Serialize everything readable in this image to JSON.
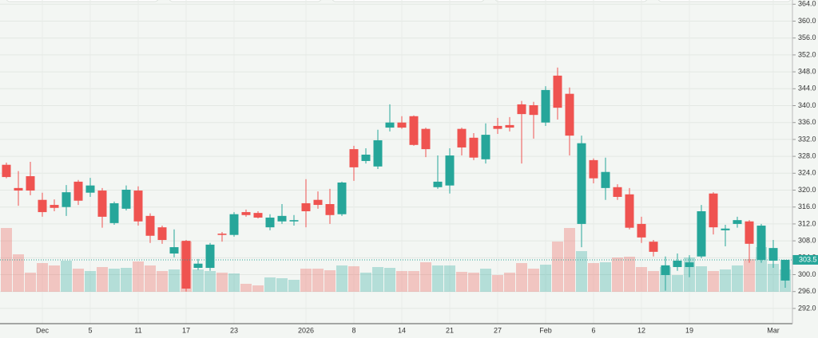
{
  "chart_data": {
    "type": "candlestick",
    "categories": [
      null,
      null,
      null,
      "Dec",
      null,
      null,
      null,
      "5",
      null,
      null,
      null,
      "11",
      null,
      null,
      null,
      "17",
      null,
      null,
      null,
      "23",
      null,
      null,
      null,
      null,
      null,
      "2026",
      null,
      null,
      null,
      "8",
      null,
      null,
      null,
      "14",
      null,
      null,
      null,
      "21",
      null,
      null,
      null,
      "27",
      null,
      null,
      null,
      "Feb",
      null,
      null,
      null,
      "6",
      null,
      null,
      null,
      "12",
      null,
      null,
      null,
      "19",
      null,
      null,
      null,
      null,
      null,
      null,
      "Mar",
      null
    ],
    "open": [
      326.0,
      320.5,
      323.3,
      317.7,
      316.5,
      316.0,
      322.0,
      319.4,
      319.9,
      312.2,
      315.6,
      319.9,
      313.9,
      311.2,
      305.0,
      308.0,
      301.6,
      301.6,
      309.7,
      309.4,
      314.8,
      314.6,
      311.2,
      312.6,
      312.6,
      316.9,
      317.7,
      316.7,
      314.3,
      329.7,
      326.9,
      325.6,
      334.8,
      336.0,
      337.5,
      334.5,
      320.7,
      321.1,
      334.5,
      332.4,
      327.3,
      335.2,
      335.4,
      340.3,
      340.1,
      336.0,
      347.1,
      342.8,
      312.0,
      327.1,
      320.5,
      320.7,
      319.0,
      312.0,
      307.8,
      299.9,
      301.8,
      301.8,
      304.3,
      319.2,
      310.5,
      312.0,
      312.6,
      303.5,
      303.3,
      298.6
    ],
    "high": [
      326.5,
      324.5,
      326.7,
      319.4,
      317.8,
      321.2,
      322.4,
      322.9,
      320.5,
      317.3,
      321.1,
      320.9,
      314.5,
      311.6,
      310.7,
      308.2,
      303.7,
      307.5,
      310.1,
      314.8,
      315.4,
      315.0,
      314.3,
      316.7,
      314.1,
      322.6,
      319.7,
      320.3,
      322.0,
      330.5,
      329.9,
      334.3,
      340.3,
      337.5,
      337.7,
      334.8,
      328.2,
      329.9,
      334.8,
      333.5,
      335.8,
      337.1,
      337.3,
      341.1,
      340.9,
      344.6,
      349.0,
      344.3,
      332.9,
      327.5,
      327.7,
      321.4,
      320.5,
      313.7,
      308.2,
      304.3,
      305.0,
      304.6,
      316.5,
      319.5,
      311.8,
      313.7,
      312.9,
      312.0,
      308.2,
      303.5
    ],
    "low": [
      322.8,
      316.3,
      318.8,
      313.7,
      315.0,
      313.9,
      316.5,
      318.4,
      311.1,
      311.8,
      315.2,
      311.6,
      307.5,
      307.3,
      304.1,
      296.0,
      301.1,
      300.9,
      307.8,
      309.0,
      313.7,
      313.3,
      310.5,
      312.0,
      311.6,
      311.2,
      315.6,
      312.0,
      313.9,
      322.2,
      326.3,
      325.0,
      333.9,
      334.5,
      330.5,
      327.8,
      320.3,
      319.2,
      328.2,
      327.1,
      326.3,
      333.3,
      333.9,
      326.3,
      332.2,
      335.2,
      336.7,
      328.2,
      306.5,
      321.6,
      317.7,
      317.7,
      310.7,
      307.5,
      304.3,
      296.2,
      300.9,
      299.4,
      303.9,
      309.5,
      306.7,
      311.1,
      302.8,
      302.8,
      301.6,
      296.9
    ],
    "close": [
      323.1,
      319.9,
      319.9,
      314.8,
      315.8,
      319.5,
      317.5,
      321.1,
      313.7,
      316.9,
      320.1,
      312.6,
      309.2,
      308.2,
      306.5,
      296.7,
      302.6,
      307.1,
      309.4,
      314.3,
      314.1,
      313.5,
      313.5,
      313.9,
      312.9,
      315.0,
      316.5,
      314.1,
      321.8,
      325.4,
      328.4,
      331.8,
      336.0,
      334.8,
      330.7,
      329.7,
      322.0,
      328.2,
      330.1,
      327.7,
      333.1,
      334.5,
      334.8,
      338.0,
      337.8,
      343.7,
      339.5,
      332.9,
      331.1,
      322.8,
      324.3,
      318.4,
      311.1,
      308.8,
      305.4,
      302.2,
      303.3,
      302.9,
      315.0,
      311.2,
      310.9,
      312.9,
      307.3,
      311.6,
      306.3,
      303.5
    ],
    "volume": [
      80,
      47,
      24,
      36,
      33,
      39,
      29,
      26,
      31,
      29,
      30,
      38,
      33,
      26,
      28,
      63,
      28,
      26,
      24,
      23,
      10,
      8,
      18,
      17,
      15,
      29,
      29,
      27,
      33,
      32,
      24,
      31,
      30,
      26,
      26,
      37,
      33,
      33,
      25,
      24,
      29,
      21,
      24,
      36,
      29,
      34,
      63,
      80,
      51,
      36,
      37,
      43,
      44,
      31,
      26,
      31,
      21,
      43,
      32,
      26,
      28,
      33,
      41,
      56,
      35,
      28
    ],
    "up_color": "#26a69a",
    "down_color": "#ef5350",
    "last_price": 303.5,
    "ylim": [
      288.4,
      365.0
    ],
    "yticks": [
      {
        "value": 292,
        "label": "292.0"
      },
      {
        "value": 296,
        "label": "296.0"
      },
      {
        "value": 300,
        "label": "300.0"
      },
      {
        "value": 304,
        "label": "304.0"
      },
      {
        "value": 308,
        "label": "308.0"
      },
      {
        "value": 312,
        "label": "312.0"
      },
      {
        "value": 316,
        "label": "316.0"
      },
      {
        "value": 320,
        "label": "320.0"
      },
      {
        "value": 324,
        "label": "324.0"
      },
      {
        "value": 328,
        "label": "328.0"
      },
      {
        "value": 332,
        "label": "332.0"
      },
      {
        "value": 336,
        "label": "336.0"
      },
      {
        "value": 340,
        "label": "340.0"
      },
      {
        "value": 344,
        "label": "344.0"
      },
      {
        "value": 348,
        "label": "348.0"
      },
      {
        "value": 352,
        "label": "352.0"
      },
      {
        "value": 356,
        "label": "356.0"
      },
      {
        "value": 360,
        "label": "360.0"
      },
      {
        "value": 364,
        "label": "364.0"
      }
    ],
    "grid": true
  }
}
